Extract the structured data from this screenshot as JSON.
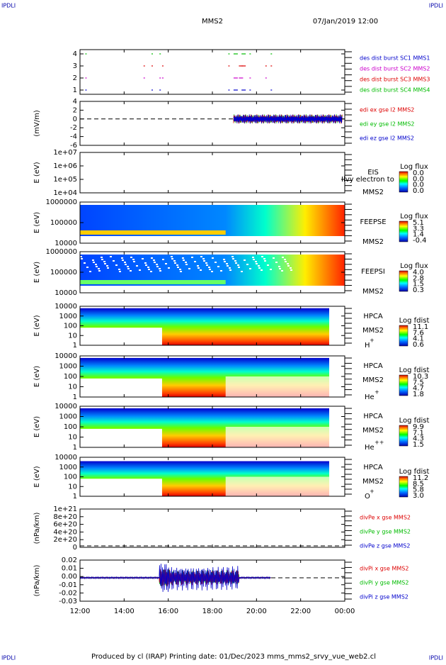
{
  "corners": [
    "IPDLI",
    "IPDLI",
    "IPDLI",
    "IPDLI"
  ],
  "header": {
    "title": "MMS2",
    "date": "07/Jan/2019 12:00"
  },
  "panels": [
    {
      "ylabel": "",
      "yticks": [
        "4",
        "3",
        "2",
        "1"
      ],
      "legend": [
        {
          "text": "des dist burst SC1 MMS1",
          "color": "#0000cc"
        },
        {
          "text": "des dist burst SC2 MMS2",
          "color": "#cc00cc"
        },
        {
          "text": "des dist burst SC3 MMS3",
          "color": "#dd0000"
        },
        {
          "text": "des dist burst SC4 MMS4",
          "color": "#00bb00"
        }
      ]
    },
    {
      "ylabel": "(mV/m)",
      "yticks": [
        "4",
        "2",
        "0",
        "-2",
        "-4",
        "-6"
      ],
      "legend": [
        {
          "text": "edi ex gse l2 MMS2",
          "color": "#dd0000"
        },
        {
          "text": "edi ey gse l2 MMS2",
          "color": "#00bb00"
        },
        {
          "text": "edi ez gse l2 MMS2",
          "color": "#0000cc"
        }
      ]
    },
    {
      "ylabel": "E (eV)",
      "yticks": [
        "1e+07",
        "1e+06",
        "1e+05",
        "1e+04"
      ],
      "instrument": [
        "EIS",
        "MMS2"
      ],
      "overlay": "Ilvy electron to",
      "colorbar": {
        "title": "Log flux",
        "labels": [
          "0.0",
          "0.0",
          "0.0",
          "0.0"
        ]
      }
    },
    {
      "ylabel": "E (eV)",
      "yticks": [
        "1000000",
        "100000",
        "10000"
      ],
      "instrument": [
        "FEEPSE",
        "MMS2"
      ],
      "colorbar": {
        "title": "Log flux",
        "labels": [
          "5.1",
          "3.3",
          "1.4",
          "-0.4"
        ]
      }
    },
    {
      "ylabel": "E (eV)",
      "yticks": [
        "1000000",
        "100000",
        "10000"
      ],
      "instrument": [
        "FEEPSI",
        "MMS2"
      ],
      "colorbar": {
        "title": "Log flux",
        "labels": [
          "4.0",
          "2.8",
          "1.5",
          "0.3"
        ]
      }
    },
    {
      "ylabel": "E (eV)",
      "yticks": [
        "10000",
        "1000",
        "100",
        "10",
        "1"
      ],
      "instrument": [
        "HPCA",
        "MMS2"
      ],
      "species": {
        "base": "H",
        "sup": "+"
      },
      "colorbar": {
        "title": "Log fdist",
        "labels": [
          "11.1",
          "7.6",
          "4.1",
          "0.6"
        ]
      }
    },
    {
      "ylabel": "E (eV)",
      "yticks": [
        "10000",
        "1000",
        "100",
        "10",
        "1"
      ],
      "instrument": [
        "HPCA",
        "MMS2"
      ],
      "species": {
        "base": "He",
        "sup": "+"
      },
      "colorbar": {
        "title": "Log fdist",
        "labels": [
          "10.3",
          "7.5",
          "4.7",
          "1.8"
        ]
      }
    },
    {
      "ylabel": "E (eV)",
      "yticks": [
        "10000",
        "1000",
        "100",
        "10",
        "1"
      ],
      "instrument": [
        "HPCA",
        "MMS2"
      ],
      "species": {
        "base": "He",
        "sup": "++"
      },
      "colorbar": {
        "title": "Log fdist",
        "labels": [
          "9.9",
          "7.1",
          "4.3",
          "1.5"
        ]
      }
    },
    {
      "ylabel": "E (eV)",
      "yticks": [
        "10000",
        "1000",
        "100",
        "10",
        "1"
      ],
      "instrument": [
        "HPCA",
        "MMS2"
      ],
      "species": {
        "base": "O",
        "sup": "+"
      },
      "colorbar": {
        "title": "Log fdist",
        "labels": [
          "11.2",
          "8.5",
          "5.8",
          "3.0"
        ]
      }
    },
    {
      "ylabel": "(nPa/km)",
      "yticks": [
        "1e+21",
        "8e+20",
        "6e+20",
        "4e+20",
        "2e+20",
        "0"
      ],
      "legend": [
        {
          "text": "divPe x gse MMS2",
          "color": "#dd0000"
        },
        {
          "text": "divPe y gse MMS2",
          "color": "#00bb00"
        },
        {
          "text": "divPe z gse MMS2",
          "color": "#0000cc"
        }
      ]
    },
    {
      "ylabel": "(nPa/km)",
      "yticks": [
        "0.02",
        "0.01",
        "0.00",
        "-0.01",
        "-0.02",
        "-0.03"
      ],
      "legend": [
        {
          "text": "divPi x gse MMS2",
          "color": "#dd0000"
        },
        {
          "text": "divPi y gse MMS2",
          "color": "#00bb00"
        },
        {
          "text": "divPi z gse MMS2",
          "color": "#0000cc"
        }
      ]
    }
  ],
  "xticks": [
    "12:00",
    "14:00",
    "16:00",
    "18:00",
    "20:00",
    "22:00",
    "00:00"
  ],
  "footer": "Produced by cl (IRAP)   Printing date: 01/Dec/2023   mms_mms2_srvy_vue_web2.cl"
}
